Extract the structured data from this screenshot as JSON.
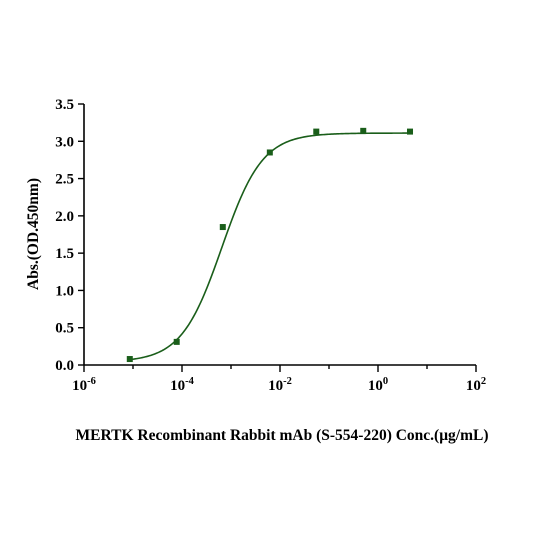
{
  "chart_data": {
    "type": "scatter",
    "title": "",
    "xlabel": "MERTK Recombinant Rabbit mAb (S-554-220)  Conc.(μg/mL)",
    "ylabel": "Abs.(OD.450nm)",
    "x_scale": "log",
    "xlim": [
      1e-06,
      100
    ],
    "ylim": [
      0,
      3.5
    ],
    "x_ticks": [
      {
        "value": 1e-06,
        "base": "10",
        "exp": "-6"
      },
      {
        "value": 0.0001,
        "base": "10",
        "exp": "-4"
      },
      {
        "value": 0.01,
        "base": "10",
        "exp": "-2"
      },
      {
        "value": 1,
        "base": "10",
        "exp": "0"
      },
      {
        "value": 100,
        "base": "10",
        "exp": "2"
      }
    ],
    "y_ticks": [
      "0.0",
      "0.5",
      "1.0",
      "1.5",
      "2.0",
      "2.5",
      "3.0",
      "3.5"
    ],
    "grid": false,
    "colors": {
      "series": "#1a5e1a"
    },
    "series": [
      {
        "x": [
          8.6e-06,
          7.8e-05,
          0.00068,
          0.0062,
          0.055,
          0.5,
          4.5
        ],
        "values": [
          0.08,
          0.31,
          1.85,
          2.85,
          3.13,
          3.14,
          3.13
        ]
      }
    ],
    "fit": {
      "model": "4PL",
      "bottom": 0.04,
      "top": 3.11,
      "ec50": 0.00065,
      "hill": 1.05
    }
  }
}
